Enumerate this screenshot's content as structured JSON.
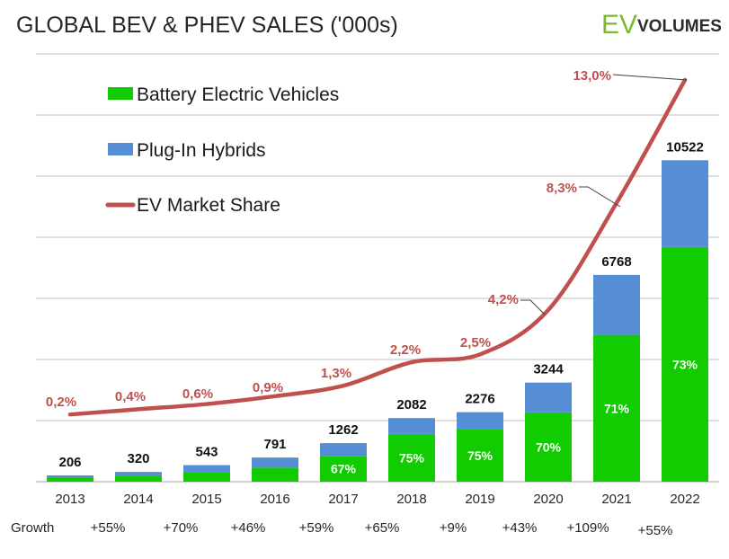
{
  "title": "GLOBAL BEV & PHEV SALES ('000s)",
  "logo": {
    "ev": "EV",
    "volumes": "VOLUMES"
  },
  "colors": {
    "bev": "#11cc00",
    "phev": "#558ed5",
    "share": "#c0504d",
    "grid": "#bfbfbf"
  },
  "chart_data": {
    "type": "bar",
    "stacked": true,
    "title": "GLOBAL BEV & PHEV SALES ('000s)",
    "categories": [
      "2013",
      "2014",
      "2015",
      "2016",
      "2017",
      "2018",
      "2019",
      "2020",
      "2021",
      "2022"
    ],
    "totals": [
      206,
      320,
      543,
      791,
      1262,
      2082,
      2276,
      3244,
      6768,
      10522
    ],
    "series": [
      {
        "name": "Battery Electric Vehicles",
        "kind": "bar",
        "values": [
          118,
          190,
          320,
          460,
          846,
          1562,
          1707,
          2271,
          4805,
          7681
        ]
      },
      {
        "name": "Plug-In Hybrids",
        "kind": "bar",
        "values": [
          88,
          130,
          223,
          331,
          416,
          520,
          569,
          973,
          1963,
          2841
        ]
      },
      {
        "name": "EV Market Share",
        "kind": "line",
        "unit": "%",
        "values": [
          0.2,
          0.4,
          0.6,
          0.9,
          1.3,
          2.2,
          2.5,
          4.2,
          8.3,
          13.0
        ]
      }
    ],
    "bev_share_labels": [
      "",
      "",
      "",
      "",
      "67%",
      "75%",
      "75%",
      "70%",
      "71%",
      "73%"
    ],
    "market_share_labels": [
      "0,2%",
      "0,4%",
      "0,6%",
      "0,9%",
      "1,3%",
      "2,2%",
      "2,5%",
      "4,2%",
      "8,3%",
      "13,0%"
    ],
    "growth": {
      "label": "Growth",
      "values": [
        "+55%",
        "+70%",
        "+46%",
        "+59%",
        "+65%",
        "+9%",
        "+43%",
        "+109%",
        "+55%"
      ]
    },
    "ylim": [
      0,
      14000
    ],
    "grid": true,
    "legend_position": "top-left"
  }
}
